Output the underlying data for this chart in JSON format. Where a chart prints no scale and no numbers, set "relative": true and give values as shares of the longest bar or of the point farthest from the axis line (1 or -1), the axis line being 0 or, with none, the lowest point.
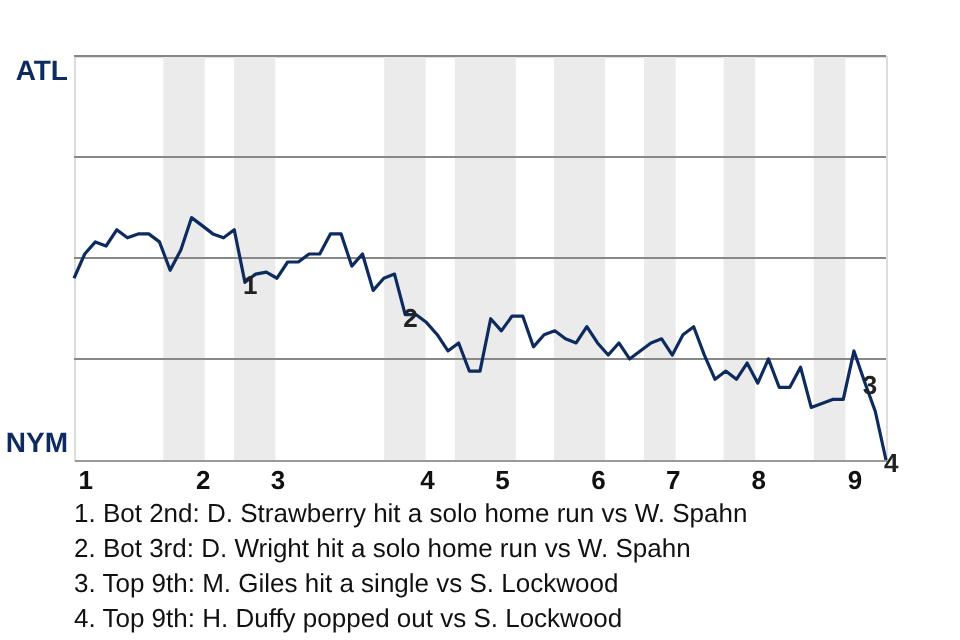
{
  "chart_data": {
    "type": "line",
    "relative": true,
    "categories": [
      null,
      "1",
      null,
      null,
      null,
      null,
      null,
      null,
      null,
      null,
      null,
      null,
      "2",
      null,
      null,
      null,
      null,
      null,
      null,
      "3",
      null,
      null,
      null,
      null,
      null,
      null,
      null,
      null,
      null,
      null,
      null,
      null,
      null,
      "4",
      null,
      null,
      null,
      null,
      null,
      null,
      "5",
      null,
      null,
      null,
      null,
      null,
      null,
      null,
      null,
      "6",
      null,
      null,
      null,
      null,
      null,
      null,
      "7",
      null,
      null,
      null,
      null,
      null,
      null,
      null,
      "8",
      null,
      null,
      null,
      null,
      null,
      null,
      null,
      null,
      "9",
      null,
      null,
      null
    ],
    "series": [
      {
        "color": "#0d2b5e",
        "values": [
          0.75,
          0.85,
          0.9,
          0.883,
          0.95,
          0.917,
          0.933,
          0.933,
          0.9,
          0.783,
          0.867,
          1,
          0.967,
          0.933,
          0.917,
          0.95,
          0.733,
          0.767,
          0.775,
          0.75,
          0.817,
          0.817,
          0.85,
          0.85,
          0.933,
          0.933,
          0.8,
          0.85,
          0.7,
          0.75,
          0.767,
          0.6,
          0.6,
          0.567,
          0.517,
          0.45,
          0.483,
          0.367,
          0.367,
          0.583,
          0.533,
          0.594,
          0.594,
          0.467,
          0.517,
          0.533,
          0.5,
          0.483,
          0.55,
          0.483,
          0.433,
          0.483,
          0.417,
          0.45,
          0.483,
          0.5,
          0.433,
          0.517,
          0.55,
          0.433,
          0.333,
          0.367,
          0.333,
          0.4,
          0.317,
          0.417,
          0.3,
          0.3,
          0.383,
          0.217,
          0.233,
          0.25,
          0.25,
          0.45,
          0.322,
          0.2,
          0
        ]
      }
    ],
    "marker": "none",
    "line_style": "solid",
    "ref_lines": [
      {
        "axis": "y",
        "value": 0.417,
        "color": "#888888"
      },
      {
        "axis": "y",
        "value": 0.833,
        "color": "#888888"
      },
      {
        "axis": "y",
        "value": 1.25,
        "color": "#888888"
      },
      {
        "axis": "y",
        "value": 1.667,
        "color": "#888888"
      }
    ],
    "annotations": [
      {
        "text": "1",
        "y": 0.733
      },
      {
        "text": "2",
        "y": 0.6
      },
      {
        "text": "3",
        "y": 0.322
      },
      {
        "text": "4",
        "y": 0
      },
      "ATL",
      "NYM",
      "1. Bot 2nd: D. Strawberry hit a solo home run vs W. Spahn",
      "2. Bot 3rd: D. Wright hit a solo home run vs W. Spahn",
      "3. Top 9th: M. Giles hit a single vs S. Lockwood",
      "4. Top 9th: H. Duffy popped out vs S. Lockwood"
    ]
  }
}
